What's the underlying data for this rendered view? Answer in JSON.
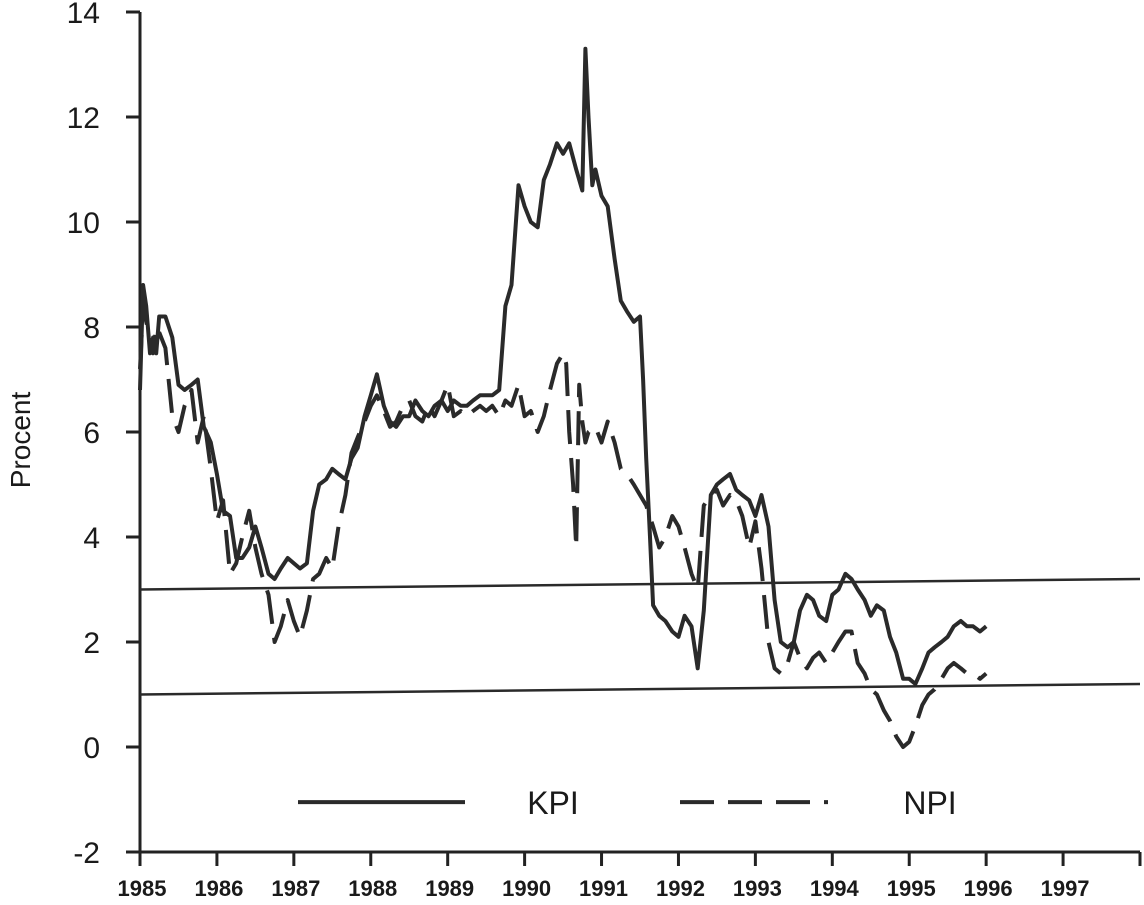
{
  "chart_data": {
    "type": "line",
    "title": "",
    "xlabel": "",
    "ylabel": "Procent",
    "ylim": [
      -2,
      14
    ],
    "xlim": [
      1985,
      1998
    ],
    "y_ticks": [
      14,
      12,
      10,
      8,
      6,
      4,
      2,
      0,
      -2
    ],
    "x_ticks": [
      "1985",
      "1986",
      "1987",
      "1988",
      "1989",
      "1990",
      "1991",
      "1992",
      "1993",
      "1994",
      "1995",
      "1996",
      "1997"
    ],
    "grid": false,
    "legend_position": "bottom-center",
    "series": [
      {
        "name": "KPI",
        "style": "solid",
        "points": [
          [
            1985.0,
            6.8
          ],
          [
            1985.04,
            8.8
          ],
          [
            1985.08,
            8.4
          ],
          [
            1985.13,
            7.5
          ],
          [
            1985.17,
            7.8
          ],
          [
            1985.21,
            7.5
          ],
          [
            1985.25,
            8.2
          ],
          [
            1985.33,
            8.2
          ],
          [
            1985.42,
            7.8
          ],
          [
            1985.5,
            6.9
          ],
          [
            1985.58,
            6.8
          ],
          [
            1985.67,
            6.9
          ],
          [
            1985.75,
            7.0
          ],
          [
            1985.83,
            6.1
          ],
          [
            1985.92,
            5.8
          ],
          [
            1986.0,
            5.2
          ],
          [
            1986.08,
            4.5
          ],
          [
            1986.17,
            4.4
          ],
          [
            1986.25,
            3.6
          ],
          [
            1986.33,
            3.6
          ],
          [
            1986.42,
            3.8
          ],
          [
            1986.5,
            4.2
          ],
          [
            1986.58,
            3.8
          ],
          [
            1986.67,
            3.3
          ],
          [
            1986.75,
            3.2
          ],
          [
            1986.83,
            3.4
          ],
          [
            1986.92,
            3.6
          ],
          [
            1987.0,
            3.5
          ],
          [
            1987.08,
            3.4
          ],
          [
            1987.17,
            3.5
          ],
          [
            1987.25,
            4.5
          ],
          [
            1987.33,
            5.0
          ],
          [
            1987.42,
            5.1
          ],
          [
            1987.5,
            5.3
          ],
          [
            1987.58,
            5.2
          ],
          [
            1987.67,
            5.1
          ],
          [
            1987.75,
            5.5
          ],
          [
            1987.83,
            5.7
          ],
          [
            1987.92,
            6.3
          ],
          [
            1988.0,
            6.7
          ],
          [
            1988.08,
            7.1
          ],
          [
            1988.17,
            6.5
          ],
          [
            1988.25,
            6.2
          ],
          [
            1988.33,
            6.1
          ],
          [
            1988.42,
            6.3
          ],
          [
            1988.5,
            6.3
          ],
          [
            1988.58,
            6.6
          ],
          [
            1988.67,
            6.4
          ],
          [
            1988.75,
            6.3
          ],
          [
            1988.83,
            6.5
          ],
          [
            1988.92,
            6.6
          ],
          [
            1989.0,
            6.4
          ],
          [
            1989.08,
            6.6
          ],
          [
            1989.17,
            6.5
          ],
          [
            1989.25,
            6.5
          ],
          [
            1989.33,
            6.6
          ],
          [
            1989.42,
            6.7
          ],
          [
            1989.5,
            6.7
          ],
          [
            1989.58,
            6.7
          ],
          [
            1989.67,
            6.8
          ],
          [
            1989.75,
            8.4
          ],
          [
            1989.83,
            8.8
          ],
          [
            1989.92,
            10.7
          ],
          [
            1990.0,
            10.3
          ],
          [
            1990.08,
            10.0
          ],
          [
            1990.17,
            9.9
          ],
          [
            1990.25,
            10.8
          ],
          [
            1990.33,
            11.1
          ],
          [
            1990.42,
            11.5
          ],
          [
            1990.5,
            11.3
          ],
          [
            1990.58,
            11.5
          ],
          [
            1990.67,
            11.0
          ],
          [
            1990.75,
            10.6
          ],
          [
            1990.79,
            13.3
          ],
          [
            1990.83,
            12.0
          ],
          [
            1990.88,
            10.7
          ],
          [
            1990.92,
            11.0
          ],
          [
            1991.0,
            10.5
          ],
          [
            1991.08,
            10.3
          ],
          [
            1991.17,
            9.3
          ],
          [
            1991.25,
            8.5
          ],
          [
            1991.33,
            8.3
          ],
          [
            1991.42,
            8.1
          ],
          [
            1991.5,
            8.2
          ],
          [
            1991.54,
            7.0
          ],
          [
            1991.58,
            5.5
          ],
          [
            1991.63,
            4.0
          ],
          [
            1991.67,
            2.7
          ],
          [
            1991.75,
            2.5
          ],
          [
            1991.83,
            2.4
          ],
          [
            1991.92,
            2.2
          ],
          [
            1992.0,
            2.1
          ],
          [
            1992.08,
            2.5
          ],
          [
            1992.17,
            2.3
          ],
          [
            1992.25,
            1.5
          ],
          [
            1992.33,
            2.6
          ],
          [
            1992.42,
            4.8
          ],
          [
            1992.5,
            5.0
          ],
          [
            1992.58,
            5.1
          ],
          [
            1992.67,
            5.2
          ],
          [
            1992.75,
            4.9
          ],
          [
            1992.83,
            4.8
          ],
          [
            1992.92,
            4.7
          ],
          [
            1993.0,
            4.4
          ],
          [
            1993.08,
            4.8
          ],
          [
            1993.17,
            4.2
          ],
          [
            1993.25,
            2.8
          ],
          [
            1993.33,
            2.0
          ],
          [
            1993.42,
            1.9
          ],
          [
            1993.5,
            2.0
          ],
          [
            1993.58,
            2.6
          ],
          [
            1993.67,
            2.9
          ],
          [
            1993.75,
            2.8
          ],
          [
            1993.83,
            2.5
          ],
          [
            1993.92,
            2.4
          ],
          [
            1994.0,
            2.9
          ],
          [
            1994.08,
            3.0
          ],
          [
            1994.17,
            3.3
          ],
          [
            1994.25,
            3.2
          ],
          [
            1994.33,
            3.0
          ],
          [
            1994.42,
            2.8
          ],
          [
            1994.5,
            2.5
          ],
          [
            1994.58,
            2.7
          ],
          [
            1994.67,
            2.6
          ],
          [
            1994.75,
            2.1
          ],
          [
            1994.83,
            1.8
          ],
          [
            1994.92,
            1.3
          ],
          [
            1995.0,
            1.3
          ],
          [
            1995.08,
            1.2
          ],
          [
            1995.17,
            1.5
          ],
          [
            1995.25,
            1.8
          ],
          [
            1995.33,
            1.9
          ],
          [
            1995.42,
            2.0
          ],
          [
            1995.5,
            2.1
          ],
          [
            1995.58,
            2.3
          ],
          [
            1995.67,
            2.4
          ],
          [
            1995.75,
            2.3
          ],
          [
            1995.83,
            2.3
          ],
          [
            1995.92,
            2.2
          ],
          [
            1996.0,
            2.3
          ]
        ]
      },
      {
        "name": "NPI",
        "style": "dashed",
        "points": [
          [
            1985.0,
            7.2
          ],
          [
            1985.04,
            8.4
          ],
          [
            1985.08,
            8.1
          ],
          [
            1985.13,
            7.8
          ],
          [
            1985.17,
            7.5
          ],
          [
            1985.21,
            8.0
          ],
          [
            1985.25,
            7.9
          ],
          [
            1985.33,
            7.6
          ],
          [
            1985.42,
            6.3
          ],
          [
            1985.5,
            6.0
          ],
          [
            1985.58,
            6.5
          ],
          [
            1985.67,
            6.8
          ],
          [
            1985.75,
            5.8
          ],
          [
            1985.83,
            6.3
          ],
          [
            1985.92,
            5.3
          ],
          [
            1986.0,
            4.3
          ],
          [
            1986.08,
            4.7
          ],
          [
            1986.17,
            3.3
          ],
          [
            1986.25,
            3.5
          ],
          [
            1986.33,
            4.0
          ],
          [
            1986.42,
            4.5
          ],
          [
            1986.5,
            3.8
          ],
          [
            1986.58,
            3.3
          ],
          [
            1986.67,
            2.9
          ],
          [
            1986.75,
            2.0
          ],
          [
            1986.83,
            2.3
          ],
          [
            1986.92,
            2.8
          ],
          [
            1987.0,
            2.4
          ],
          [
            1987.08,
            2.1
          ],
          [
            1987.17,
            2.6
          ],
          [
            1987.25,
            3.2
          ],
          [
            1987.33,
            3.3
          ],
          [
            1987.42,
            3.6
          ],
          [
            1987.5,
            3.4
          ],
          [
            1987.58,
            4.2
          ],
          [
            1987.67,
            4.8
          ],
          [
            1987.75,
            5.6
          ],
          [
            1987.83,
            5.9
          ],
          [
            1987.92,
            6.2
          ],
          [
            1988.0,
            6.5
          ],
          [
            1988.08,
            6.7
          ],
          [
            1988.17,
            6.4
          ],
          [
            1988.25,
            6.1
          ],
          [
            1988.33,
            6.2
          ],
          [
            1988.42,
            6.5
          ],
          [
            1988.5,
            6.6
          ],
          [
            1988.58,
            6.3
          ],
          [
            1988.67,
            6.2
          ],
          [
            1988.75,
            6.5
          ],
          [
            1988.83,
            6.3
          ],
          [
            1988.92,
            6.6
          ],
          [
            1989.0,
            6.9
          ],
          [
            1989.08,
            6.3
          ],
          [
            1989.17,
            6.4
          ],
          [
            1989.25,
            6.3
          ],
          [
            1989.33,
            6.4
          ],
          [
            1989.42,
            6.5
          ],
          [
            1989.5,
            6.4
          ],
          [
            1989.58,
            6.5
          ],
          [
            1989.67,
            6.3
          ],
          [
            1989.75,
            6.6
          ],
          [
            1989.83,
            6.5
          ],
          [
            1989.92,
            6.9
          ],
          [
            1990.0,
            6.3
          ],
          [
            1990.08,
            6.4
          ],
          [
            1990.17,
            6.0
          ],
          [
            1990.25,
            6.3
          ],
          [
            1990.33,
            6.8
          ],
          [
            1990.42,
            7.3
          ],
          [
            1990.5,
            7.5
          ],
          [
            1990.54,
            7.3
          ],
          [
            1990.58,
            6.0
          ],
          [
            1990.63,
            5.0
          ],
          [
            1990.67,
            3.8
          ],
          [
            1990.71,
            6.9
          ],
          [
            1990.75,
            6.2
          ],
          [
            1990.79,
            5.8
          ],
          [
            1990.83,
            6.0
          ],
          [
            1990.92,
            6.1
          ],
          [
            1991.0,
            5.8
          ],
          [
            1991.08,
            6.2
          ],
          [
            1991.17,
            5.8
          ],
          [
            1991.25,
            5.3
          ],
          [
            1991.33,
            5.2
          ],
          [
            1991.42,
            5.0
          ],
          [
            1991.5,
            4.8
          ],
          [
            1991.58,
            4.6
          ],
          [
            1991.67,
            4.2
          ],
          [
            1991.75,
            3.8
          ],
          [
            1991.83,
            4.0
          ],
          [
            1991.92,
            4.4
          ],
          [
            1992.0,
            4.2
          ],
          [
            1992.08,
            3.8
          ],
          [
            1992.17,
            3.3
          ],
          [
            1992.25,
            3.0
          ],
          [
            1992.33,
            4.6
          ],
          [
            1992.42,
            4.8
          ],
          [
            1992.5,
            4.9
          ],
          [
            1992.58,
            4.6
          ],
          [
            1992.67,
            4.8
          ],
          [
            1992.75,
            4.7
          ],
          [
            1992.83,
            4.4
          ],
          [
            1992.92,
            3.8
          ],
          [
            1993.0,
            4.3
          ],
          [
            1993.08,
            3.4
          ],
          [
            1993.17,
            2.0
          ],
          [
            1993.25,
            1.5
          ],
          [
            1993.33,
            1.4
          ],
          [
            1993.42,
            1.6
          ],
          [
            1993.5,
            2.0
          ],
          [
            1993.58,
            1.7
          ],
          [
            1993.67,
            1.5
          ],
          [
            1993.75,
            1.7
          ],
          [
            1993.83,
            1.8
          ],
          [
            1993.92,
            1.6
          ],
          [
            1994.0,
            1.8
          ],
          [
            1994.08,
            2.0
          ],
          [
            1994.17,
            2.2
          ],
          [
            1994.25,
            2.2
          ],
          [
            1994.33,
            1.6
          ],
          [
            1994.42,
            1.4
          ],
          [
            1994.5,
            1.1
          ],
          [
            1994.58,
            1.0
          ],
          [
            1994.67,
            0.7
          ],
          [
            1994.75,
            0.5
          ],
          [
            1994.83,
            0.2
          ],
          [
            1994.92,
            0.0
          ],
          [
            1995.0,
            0.1
          ],
          [
            1995.08,
            0.4
          ],
          [
            1995.17,
            0.8
          ],
          [
            1995.25,
            1.0
          ],
          [
            1995.33,
            1.1
          ],
          [
            1995.42,
            1.3
          ],
          [
            1995.5,
            1.5
          ],
          [
            1995.58,
            1.6
          ],
          [
            1995.67,
            1.5
          ],
          [
            1995.75,
            1.4
          ],
          [
            1995.83,
            1.4
          ],
          [
            1995.92,
            1.3
          ],
          [
            1996.0,
            1.4
          ]
        ]
      },
      {
        "name": "",
        "style": "solid-thin",
        "points": [
          [
            1985.0,
            3.0
          ],
          [
            1998.0,
            3.2
          ]
        ]
      },
      {
        "name": "",
        "style": "solid-thin",
        "points": [
          [
            1985.0,
            1.0
          ],
          [
            1998.0,
            1.2
          ]
        ]
      }
    ]
  }
}
